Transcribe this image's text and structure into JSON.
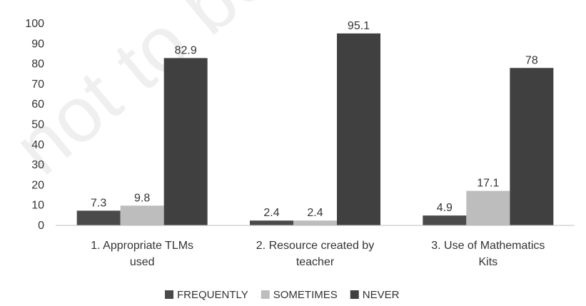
{
  "chart_data": {
    "type": "bar",
    "categories": [
      [
        "1.    Appropriate TLMs",
        "used"
      ],
      [
        "2.    Resource created by",
        "teacher"
      ],
      [
        "3.    Use of Mathematics",
        "Kits"
      ]
    ],
    "series": [
      {
        "name": "FREQUENTLY",
        "color": "#4a4a4a",
        "values": [
          7.3,
          2.4,
          4.9
        ]
      },
      {
        "name": "SOMETIMES",
        "color": "#bdbdbd",
        "values": [
          9.8,
          2.4,
          17.1
        ]
      },
      {
        "name": "NEVER",
        "color": "#404040",
        "values": [
          82.9,
          95.1,
          78
        ]
      }
    ],
    "data_labels": [
      [
        "7.3",
        "9.8",
        "82.9"
      ],
      [
        "2.4",
        "2.4",
        "95.1"
      ],
      [
        "4.9",
        "17.1",
        "78"
      ]
    ],
    "yticks": [
      0,
      10,
      20,
      30,
      40,
      50,
      60,
      70,
      80,
      90,
      100
    ],
    "ylim": [
      0,
      100
    ],
    "grid": false,
    "legend": "bottom"
  },
  "watermark": {
    "text": "not to be"
  }
}
